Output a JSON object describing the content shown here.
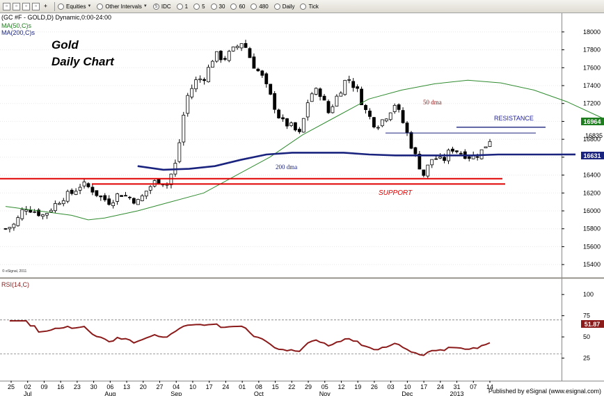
{
  "toolbar": {
    "items": [
      {
        "label": "Equities",
        "icon": "chart-icon",
        "dropdown": true
      },
      {
        "label": "Other Intervals",
        "icon": "clock-icon",
        "dropdown": true
      },
      {
        "label": "IDC",
        "icon": "s-icon"
      },
      {
        "label": "1",
        "icon": "interval-icon"
      },
      {
        "label": "5",
        "icon": "interval-icon"
      },
      {
        "label": "30",
        "icon": "interval-icon"
      },
      {
        "label": "60",
        "icon": "interval-icon"
      },
      {
        "label": "480",
        "icon": "interval-icon"
      },
      {
        "label": "Daily",
        "icon": "interval-icon"
      },
      {
        "label": "Tick",
        "icon": "interval-icon"
      }
    ]
  },
  "footer": {
    "published": "Published by eSignal (www.esignal.com)"
  },
  "chart_data": [
    {
      "type": "candlestick",
      "symbol_header": "(GC #F - GOLD,D) Dynamic,0:00-24:00",
      "title_line1": "Gold",
      "title_line2": "Daily Chart",
      "copyright": "© eSignal, 2011",
      "legend": [
        {
          "name": "MA(50,C)s",
          "color": "#1e7d1e"
        },
        {
          "name": "MA(200,C)s",
          "color": "#1a237e"
        }
      ],
      "y_axis": {
        "range": [
          15300,
          18100
        ],
        "ticks": [
          15400,
          15600,
          15800,
          16000,
          16200,
          16400,
          16600,
          16800,
          17000,
          17200,
          17400,
          17600,
          17800,
          18000
        ]
      },
      "x_axis": {
        "days": [
          "25",
          "02",
          "09",
          "16",
          "23",
          "30",
          "06",
          "13",
          "20",
          "27",
          "04",
          "10",
          "17",
          "24",
          "01",
          "08",
          "15",
          "22",
          "29",
          "05",
          "12",
          "19",
          "26",
          "03",
          "10",
          "17",
          "24",
          "31",
          "07",
          "14"
        ],
        "months": [
          {
            "label": "Jul",
            "at": "02"
          },
          {
            "label": "Aug",
            "at": "06"
          },
          {
            "label": "Sep",
            "at": "04"
          },
          {
            "label": "Oct",
            "at": "08"
          },
          {
            "label": "Nov",
            "at": "05"
          },
          {
            "label": "Dec",
            "at": "10"
          },
          {
            "label": "2013",
            "at": "31"
          }
        ]
      },
      "close_path": [
        [
          0,
          15800
        ],
        [
          1,
          15850
        ],
        [
          2,
          16050
        ],
        [
          3,
          16000
        ],
        [
          4,
          15950
        ],
        [
          5,
          16050
        ],
        [
          6,
          16150
        ],
        [
          7,
          16200
        ],
        [
          8,
          16300
        ],
        [
          9,
          16250
        ],
        [
          10,
          16150
        ],
        [
          11,
          16100
        ],
        [
          12,
          16200
        ],
        [
          13,
          16150
        ],
        [
          14,
          16100
        ],
        [
          15,
          16250
        ],
        [
          16,
          16350
        ],
        [
          17,
          16300
        ],
        [
          18,
          16550
        ],
        [
          19,
          17250
        ],
        [
          20,
          17450
        ],
        [
          21,
          17500
        ],
        [
          22,
          17750
        ],
        [
          23,
          17700
        ],
        [
          24,
          17800
        ],
        [
          25,
          17900
        ],
        [
          26,
          17650
        ],
        [
          27,
          17500
        ],
        [
          28,
          17250
        ],
        [
          29,
          17000
        ],
        [
          30,
          16950
        ],
        [
          31,
          16850
        ],
        [
          32,
          17300
        ],
        [
          33,
          17350
        ],
        [
          34,
          17100
        ],
        [
          35,
          17300
        ],
        [
          36,
          17500
        ],
        [
          37,
          17350
        ],
        [
          38,
          17100
        ],
        [
          39,
          16950
        ],
        [
          40,
          17050
        ],
        [
          41,
          17200
        ],
        [
          42,
          16950
        ],
        [
          43,
          16650
        ],
        [
          44,
          16400
        ],
        [
          45,
          16600
        ],
        [
          46,
          16550
        ],
        [
          47,
          16700
        ],
        [
          48,
          16650
        ],
        [
          49,
          16600
        ],
        [
          50,
          16650
        ],
        [
          51,
          16800
        ]
      ],
      "ma50_path": [
        [
          0,
          16050
        ],
        [
          2,
          16000
        ],
        [
          4,
          15950
        ],
        [
          5,
          15900
        ],
        [
          6,
          15920
        ],
        [
          8,
          16000
        ],
        [
          10,
          16100
        ],
        [
          12,
          16200
        ],
        [
          14,
          16400
        ],
        [
          16,
          16600
        ],
        [
          18,
          16850
        ],
        [
          20,
          17050
        ],
        [
          22,
          17250
        ],
        [
          24,
          17350
        ],
        [
          26,
          17420
        ],
        [
          28,
          17460
        ],
        [
          30,
          17430
        ],
        [
          32,
          17350
        ],
        [
          34,
          17220
        ],
        [
          36,
          17050
        ],
        [
          37,
          16970
        ],
        [
          38,
          16940
        ]
      ],
      "ma200_path": [
        [
          0,
          16500
        ],
        [
          2,
          16460
        ],
        [
          4,
          16470
        ],
        [
          6,
          16500
        ],
        [
          8,
          16570
        ],
        [
          10,
          16630
        ],
        [
          12,
          16650
        ],
        [
          14,
          16650
        ],
        [
          16,
          16650
        ],
        [
          18,
          16630
        ],
        [
          20,
          16620
        ],
        [
          22,
          16620
        ],
        [
          24,
          16620
        ],
        [
          26,
          16620
        ],
        [
          28,
          16630
        ],
        [
          30,
          16630
        ],
        [
          32,
          16630
        ],
        [
          34,
          16631
        ]
      ],
      "annotations": {
        "ma50_label": "50 dma",
        "ma200_label": "200 dma",
        "resistance_label": "RESISTANCE",
        "support_label": "SUPPORT"
      },
      "levels": {
        "resistance": [
          16935,
          16870
        ],
        "support": [
          16360,
          16330,
          16340
        ]
      },
      "price_labels": [
        {
          "value": "16964",
          "color": "#1e7d1e"
        },
        {
          "value": "16835",
          "color": null
        },
        {
          "value": "16631",
          "color": "#1a237e"
        }
      ]
    },
    {
      "type": "line",
      "header": "RSI(14,C)",
      "y_axis": {
        "range": [
          0,
          110
        ],
        "ticks": [
          25,
          50,
          75,
          100
        ]
      },
      "guides": [
        30,
        70
      ],
      "last_value": "51.87",
      "series_color": "#8b1a1a"
    }
  ]
}
